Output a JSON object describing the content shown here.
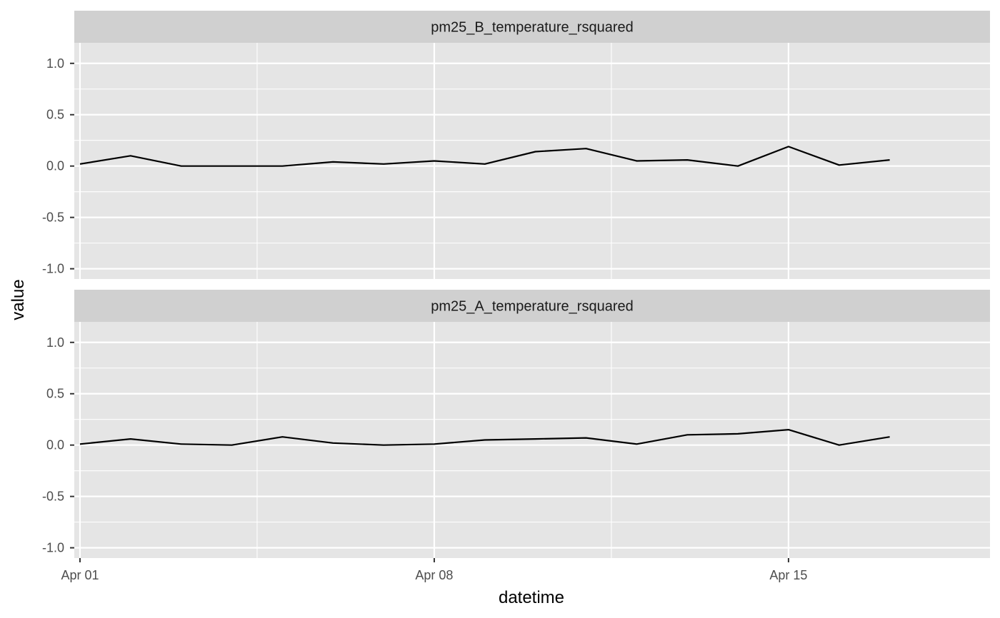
{
  "chart_data": {
    "type": "line",
    "layout": "facet-rows",
    "xlabel": "datetime",
    "ylabel": "value",
    "ylim": [
      -1.1,
      1.2
    ],
    "yticks": [
      -1.0,
      -0.5,
      0.0,
      0.5,
      1.0
    ],
    "yticks_labels": [
      "-1.0",
      "-0.5",
      "0.0",
      "0.5",
      "1.0"
    ],
    "xlim": [
      "2024-03-31T21:18",
      "2024-04-18T23:33"
    ],
    "xticks": [
      "2024-04-01",
      "2024-04-08",
      "2024-04-15"
    ],
    "xticks_labels": [
      "Apr 01",
      "Apr 08",
      "Apr 15"
    ],
    "x_minor_ticks": [
      "2024-04-04T12:00",
      "2024-04-11T12:00"
    ],
    "grid": true,
    "colors": {
      "panel_bg": "#e5e5e5",
      "strip_bg": "#d0d0d0",
      "grid": "#ffffff",
      "line": "#000000"
    },
    "x": [
      "2024-04-01",
      "2024-04-02",
      "2024-04-03",
      "2024-04-04",
      "2024-04-05",
      "2024-04-06",
      "2024-04-07",
      "2024-04-08",
      "2024-04-09",
      "2024-04-10",
      "2024-04-11",
      "2024-04-12",
      "2024-04-13",
      "2024-04-14",
      "2024-04-15",
      "2024-04-16",
      "2024-04-17"
    ],
    "series": [
      {
        "facet": "pm25_B_temperature_rsquared",
        "values": [
          0.02,
          0.1,
          0.0,
          0.0,
          0.0,
          0.04,
          0.02,
          0.05,
          0.02,
          0.14,
          0.17,
          0.05,
          0.06,
          0.0,
          0.19,
          0.01,
          0.06
        ]
      },
      {
        "facet": "pm25_A_temperature_rsquared",
        "values": [
          0.01,
          0.06,
          0.01,
          0.0,
          0.08,
          0.02,
          0.0,
          0.01,
          0.05,
          0.06,
          0.07,
          0.01,
          0.1,
          0.11,
          0.15,
          0.0,
          0.08
        ]
      }
    ]
  }
}
